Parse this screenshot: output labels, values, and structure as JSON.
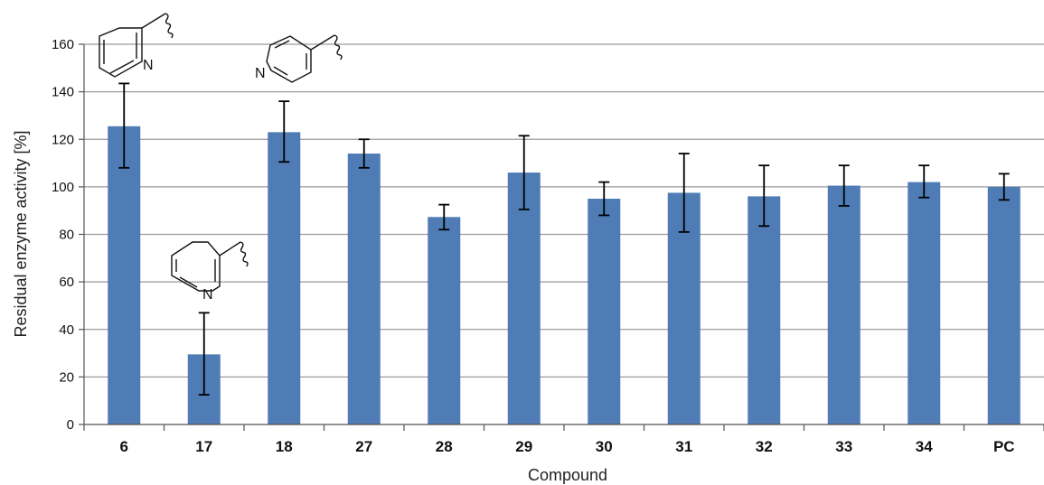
{
  "chart_data": {
    "type": "bar",
    "categories": [
      "6",
      "17",
      "18",
      "27",
      "28",
      "29",
      "30",
      "31",
      "32",
      "33",
      "34",
      "PC"
    ],
    "values": [
      125.5,
      29.5,
      123,
      114,
      87.3,
      106,
      95,
      97.5,
      96,
      100.5,
      102,
      100
    ],
    "error_low": [
      108,
      12.5,
      110.5,
      108,
      82,
      90.5,
      88,
      81,
      83.5,
      92,
      95.5,
      94.5
    ],
    "error_high": [
      143.5,
      47,
      136,
      120,
      92.5,
      121.5,
      102,
      114,
      109,
      109,
      109,
      105.5
    ],
    "xlabel": "Compound",
    "ylabel": "Residual enzyme activity [%]",
    "ylim": [
      0,
      160
    ],
    "yticks": [
      0,
      20,
      40,
      60,
      80,
      100,
      120,
      140,
      160
    ],
    "grid": "horizontal",
    "bar_color": "#4f7cb5",
    "gridline_color": "#9a9a9a"
  },
  "structures": [
    {
      "compound": "6",
      "atom_label": "N"
    },
    {
      "compound": "17",
      "atom_label": "N"
    },
    {
      "compound": "18",
      "atom_label": "N"
    }
  ]
}
